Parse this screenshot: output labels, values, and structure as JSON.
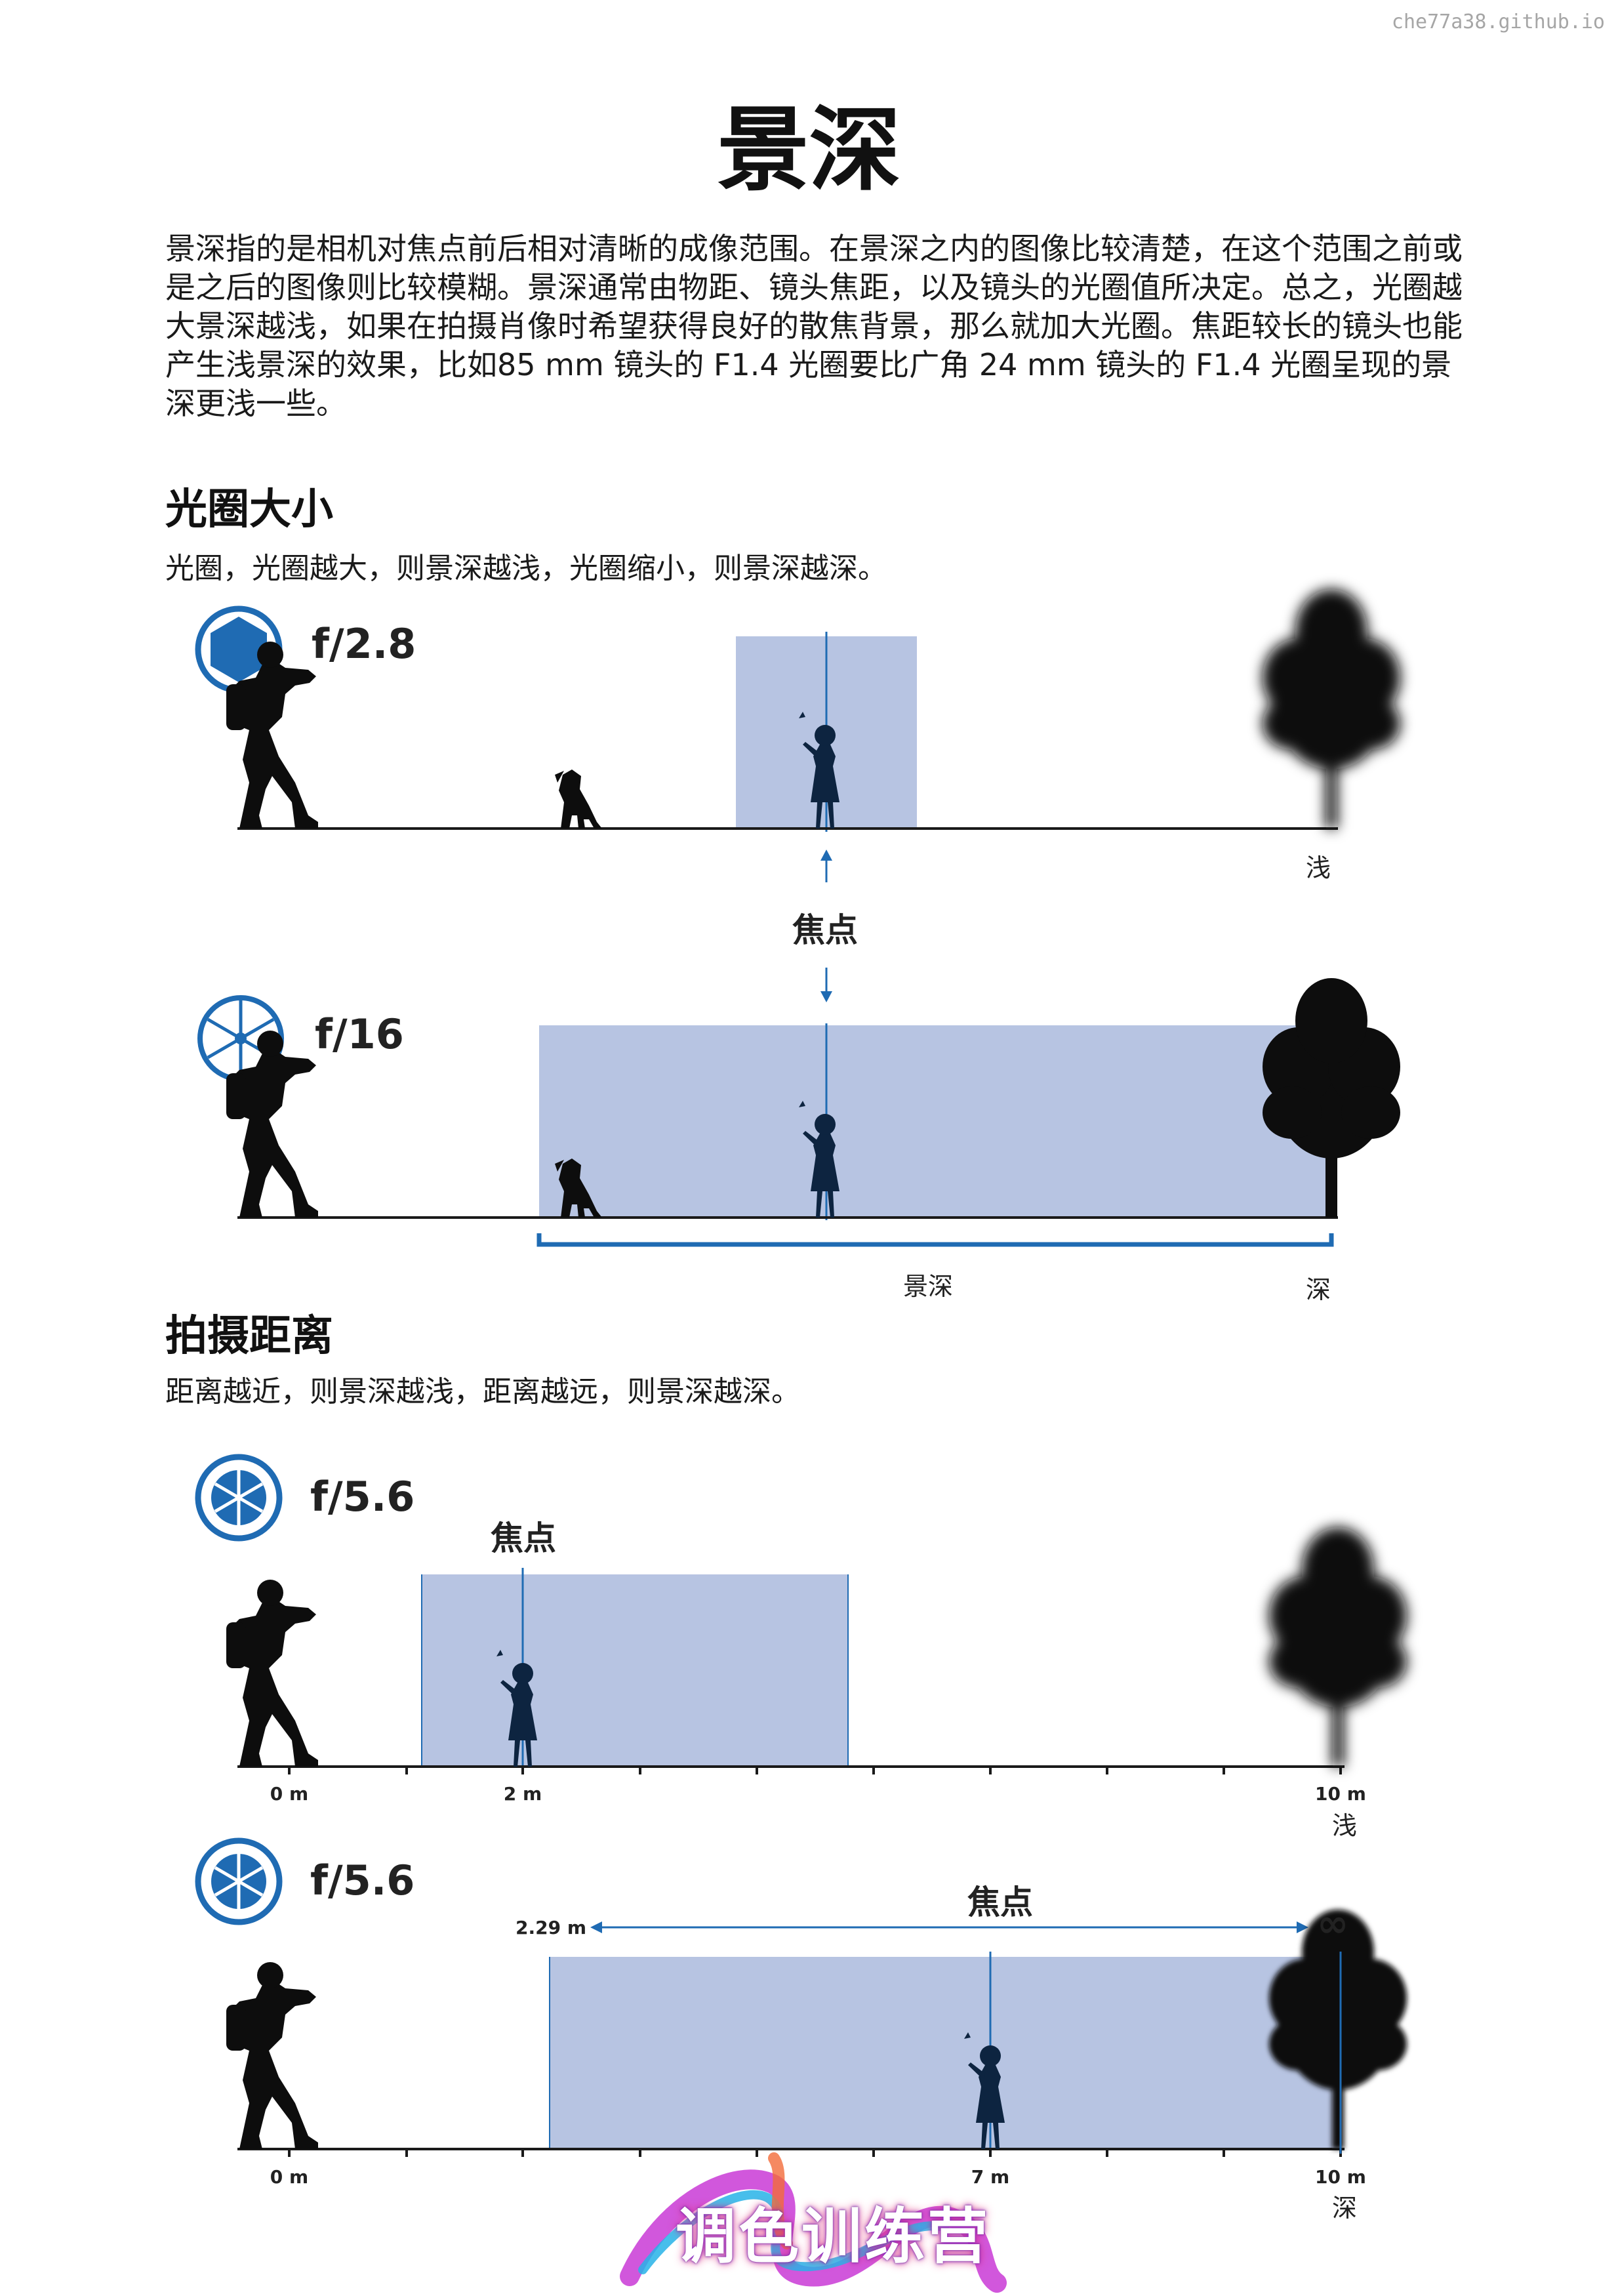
{
  "watermark": "che77a38.github.io",
  "title": "景深",
  "intro": "景深指的是相机对焦点前后相对清晰的成像范围。在景深之内的图像比较清楚，在这个范围之前或是之后的图像则比较模糊。景深通常由物距、镜头焦距，以及镜头的光圈值所决定。总之，光圈越大景深越浅，如果在拍摄肖像时希望获得良好的散焦背景，那么就加大光圈。焦距较长的镜头也能产生浅景深的效果，比如85 mm 镜头的 F1.4 光圈要比广角 24 mm 镜头的 F1.4 光圈呈现的景深更浅一些。",
  "aperture": {
    "heading": "光圈大小",
    "subtitle": "光圈，光圈越大，则景深越浅，光圈缩小，则景深越深。",
    "diagram1": {
      "fnum": "f/2.8",
      "end_label": "浅"
    },
    "focus_label": "焦点",
    "diagram2": {
      "fnum": "f/16",
      "dof_label": "景深",
      "end_label": "深"
    }
  },
  "distance": {
    "heading": "拍摄距离",
    "subtitle": "距离越近，则景深越浅，距离越远，则景深越深。",
    "diagram3": {
      "fnum": "f/5.6",
      "focus_label": "焦点",
      "ticks": [
        "0 m",
        "2 m",
        "10 m"
      ],
      "end_label": "浅"
    },
    "diagram4": {
      "fnum": "f/5.6",
      "focus_label": "焦点",
      "near_limit": "2.29 m",
      "far_limit": "∞",
      "ticks": [
        "0 m",
        "7 m",
        "10 m"
      ],
      "end_label": "深"
    }
  },
  "logo": {
    "text": "调色训练营"
  },
  "colors": {
    "dof_fill": "#b7c4e2",
    "accent_blue": "#1f6bb3",
    "silhouette": "#0d0d0d"
  }
}
